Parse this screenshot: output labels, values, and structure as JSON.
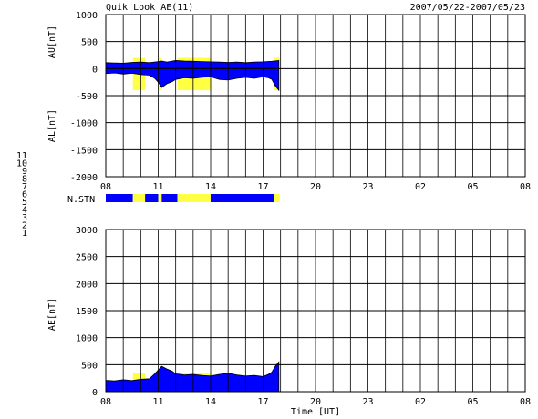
{
  "chart_data": {
    "title": "Quik Look AE(11)",
    "date_range": "2007/05/22-2007/05/23",
    "x_tick_labels": [
      "08",
      "11",
      "14",
      "17",
      "20",
      "23",
      "02",
      "05",
      "08"
    ],
    "x_label": "Time [UT]",
    "x_range_hours": [
      8,
      32
    ],
    "top_panel": {
      "type": "area",
      "ylabel_upper": "AU[nT]",
      "ylabel_lower": "AL[nT]",
      "ylim": [
        -2000,
        1000
      ],
      "y_ticks": [
        1000,
        500,
        0,
        -500,
        -1000,
        -1500,
        -2000
      ],
      "series": [
        {
          "name": "AU",
          "x": [
            8.0,
            8.5,
            9.0,
            9.5,
            10.0,
            10.5,
            11.0,
            11.2,
            11.5,
            12.0,
            12.5,
            13.0,
            13.5,
            14.0,
            14.5,
            15.0,
            15.5,
            16.0,
            16.5,
            17.0,
            17.5,
            17.9
          ],
          "values": [
            110,
            105,
            100,
            115,
            120,
            110,
            130,
            140,
            120,
            150,
            140,
            135,
            130,
            125,
            120,
            115,
            120,
            110,
            120,
            125,
            135,
            150
          ]
        },
        {
          "name": "AL",
          "x": [
            8.0,
            8.5,
            9.0,
            9.5,
            10.0,
            10.5,
            10.8,
            11.0,
            11.2,
            11.5,
            11.8,
            12.0,
            12.5,
            13.0,
            13.5,
            14.0,
            14.5,
            15.0,
            15.5,
            16.0,
            16.5,
            17.0,
            17.3,
            17.5,
            17.7,
            17.9
          ],
          "values": [
            -90,
            -80,
            -100,
            -85,
            -110,
            -120,
            -180,
            -250,
            -350,
            -280,
            -240,
            -200,
            -170,
            -180,
            -160,
            -150,
            -200,
            -210,
            -180,
            -160,
            -180,
            -150,
            -170,
            -200,
            -320,
            -400
          ]
        }
      ]
    },
    "station_bar": {
      "label": "N.STN",
      "segments": [
        {
          "start": 8.0,
          "end": 9.55,
          "color": "#0000ff"
        },
        {
          "start": 9.55,
          "end": 10.25,
          "color": "#ffff44"
        },
        {
          "start": 10.25,
          "end": 11.0,
          "color": "#0000ff"
        },
        {
          "start": 11.0,
          "end": 11.2,
          "color": "#ffff44"
        },
        {
          "start": 11.2,
          "end": 12.1,
          "color": "#0000ff"
        },
        {
          "start": 12.1,
          "end": 14.0,
          "color": "#ffff44"
        },
        {
          "start": 14.0,
          "end": 17.65,
          "color": "#0000ff"
        },
        {
          "start": 17.65,
          "end": 17.95,
          "color": "#ffff44"
        }
      ]
    },
    "station_legend": [
      {
        "label": "11",
        "color": "#00d0d0"
      },
      {
        "label": "10",
        "color": "#ff00ff"
      },
      {
        "label": "9",
        "color": "#0000cc"
      },
      {
        "label": "8",
        "color": "#dddd00"
      },
      {
        "label": "7",
        "color": "#00b000"
      },
      {
        "label": "6",
        "color": "#ff0000"
      },
      {
        "label": "5",
        "color": "#bbbbbb"
      },
      {
        "label": "4",
        "color": "#aaaaaa"
      },
      {
        "label": "3",
        "color": "#00aa88"
      },
      {
        "label": "2",
        "color": "#aa00aa"
      },
      {
        "label": "1",
        "color": "#0000cc"
      }
    ],
    "bottom_panel": {
      "type": "area",
      "ylabel": "AE[nT]",
      "ylim": [
        0,
        3000
      ],
      "y_ticks": [
        3000,
        2500,
        2000,
        1500,
        1000,
        500,
        0
      ],
      "series": [
        {
          "name": "AE",
          "x": [
            8.0,
            8.5,
            9.0,
            9.5,
            10.0,
            10.5,
            10.8,
            11.0,
            11.2,
            11.5,
            11.8,
            12.0,
            12.5,
            13.0,
            13.5,
            14.0,
            14.5,
            15.0,
            15.5,
            16.0,
            16.5,
            17.0,
            17.3,
            17.5,
            17.7,
            17.9
          ],
          "values": [
            210,
            200,
            220,
            205,
            230,
            240,
            330,
            400,
            470,
            420,
            380,
            330,
            310,
            320,
            300,
            290,
            320,
            340,
            310,
            290,
            300,
            280,
            320,
            360,
            470,
            550
          ]
        }
      ]
    },
    "grid": true
  },
  "colors": {
    "blue": "#0000ff",
    "yellow": "#ffff44",
    "grid": "#000000"
  }
}
